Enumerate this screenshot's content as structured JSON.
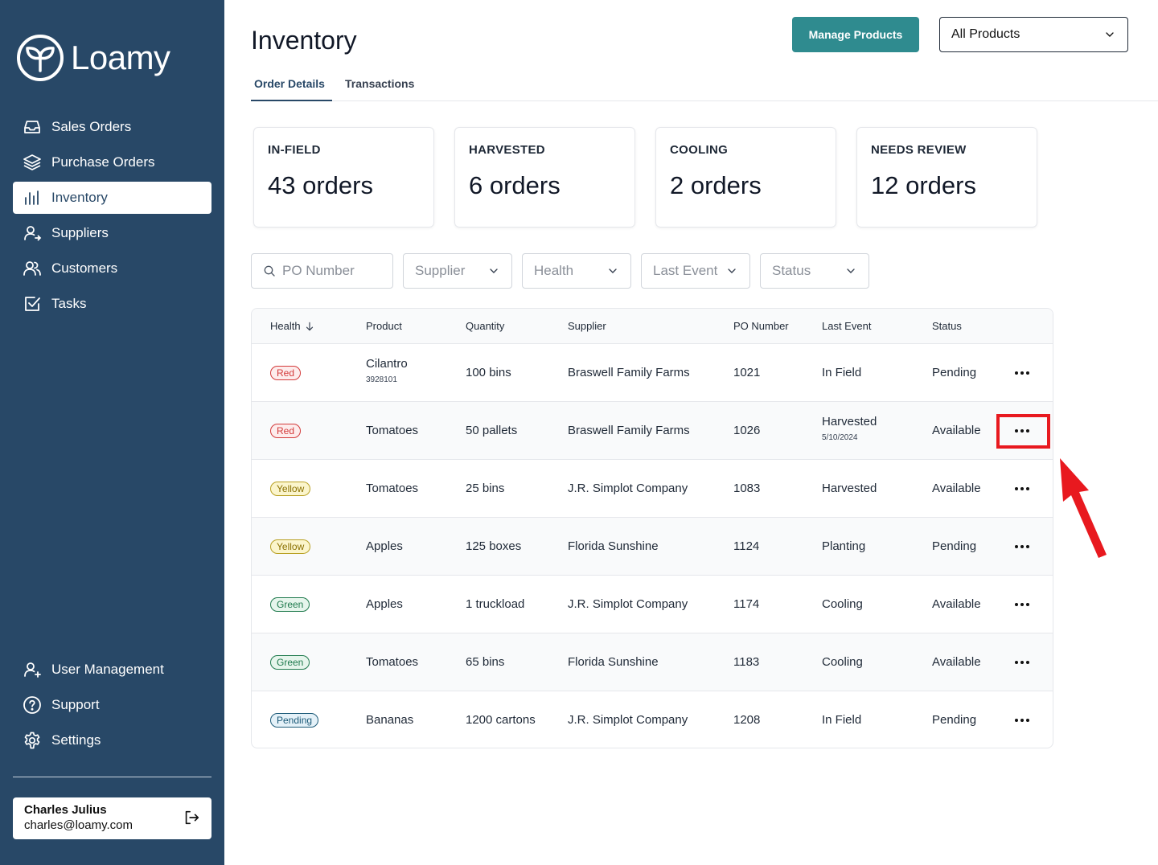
{
  "app": {
    "name": "Loamy"
  },
  "sidebar": {
    "items": [
      {
        "label": "Sales Orders",
        "icon": "inbox-icon"
      },
      {
        "label": "Purchase Orders",
        "icon": "layers-icon"
      },
      {
        "label": "Inventory",
        "icon": "bar-chart-icon",
        "active": true
      },
      {
        "label": "Suppliers",
        "icon": "user-arrow-icon"
      },
      {
        "label": "Customers",
        "icon": "users-icon"
      },
      {
        "label": "Tasks",
        "icon": "checkbox-icon"
      }
    ],
    "bottom_items": [
      {
        "label": "User Management",
        "icon": "user-plus-icon"
      },
      {
        "label": "Support",
        "icon": "help-circle-icon"
      },
      {
        "label": "Settings",
        "icon": "gear-icon"
      }
    ],
    "user": {
      "name": "Charles Julius",
      "email": "charles@loamy.com"
    }
  },
  "header": {
    "title": "Inventory",
    "manage_button": "Manage Products",
    "product_select": "All Products"
  },
  "tabs": [
    {
      "label": "Order Details",
      "active": true
    },
    {
      "label": "Transactions"
    }
  ],
  "summary_cards": [
    {
      "label": "IN-FIELD",
      "value": "43 orders"
    },
    {
      "label": "HARVESTED",
      "value": "6 orders"
    },
    {
      "label": "COOLING",
      "value": "2 orders"
    },
    {
      "label": "NEEDS REVIEW",
      "value": "12 orders"
    }
  ],
  "filters": {
    "po_placeholder": "PO Number",
    "supplier": "Supplier",
    "health": "Health",
    "last_event": "Last Event",
    "status": "Status"
  },
  "table": {
    "columns": [
      "Health",
      "Product",
      "Quantity",
      "Supplier",
      "PO Number",
      "Last Event",
      "Status"
    ],
    "rows": [
      {
        "health": "Red",
        "health_color": "red",
        "product": "Cilantro",
        "product_sub": "3928101",
        "quantity": "100 bins",
        "supplier": "Braswell Family Farms",
        "po": "1021",
        "last_event": "In Field",
        "last_event_sub": "",
        "status": "Pending"
      },
      {
        "health": "Red",
        "health_color": "red",
        "product": "Tomatoes",
        "product_sub": "",
        "quantity": "50 pallets",
        "supplier": "Braswell Family Farms",
        "po": "1026",
        "last_event": "Harvested",
        "last_event_sub": "5/10/2024",
        "status": "Available"
      },
      {
        "health": "Yellow",
        "health_color": "yellow",
        "product": "Tomatoes",
        "product_sub": "",
        "quantity": "25 bins",
        "supplier": "J.R. Simplot Company",
        "po": "1083",
        "last_event": "Harvested",
        "last_event_sub": "",
        "status": "Available"
      },
      {
        "health": "Yellow",
        "health_color": "yellow",
        "product": "Apples",
        "product_sub": "",
        "quantity": "125 boxes",
        "supplier": "Florida Sunshine",
        "po": "1124",
        "last_event": "Planting",
        "last_event_sub": "",
        "status": "Pending"
      },
      {
        "health": "Green",
        "health_color": "green",
        "product": "Apples",
        "product_sub": "",
        "quantity": "1 truckload",
        "supplier": "J.R. Simplot Company",
        "po": "1174",
        "last_event": "Cooling",
        "last_event_sub": "",
        "status": "Available"
      },
      {
        "health": "Green",
        "health_color": "green",
        "product": "Tomatoes",
        "product_sub": "",
        "quantity": "65 bins",
        "supplier": "Florida Sunshine",
        "po": "1183",
        "last_event": "Cooling",
        "last_event_sub": "",
        "status": "Available"
      },
      {
        "health": "Pending",
        "health_color": "pending",
        "product": "Bananas",
        "product_sub": "",
        "quantity": "1200 cartons",
        "supplier": "J.R. Simplot Company",
        "po": "1208",
        "last_event": "In Field",
        "last_event_sub": "",
        "status": "Pending"
      }
    ]
  },
  "annotation": {
    "color": "#e8191f"
  },
  "colors": {
    "sidebar": "#284867",
    "accent": "#2f8b8f"
  }
}
